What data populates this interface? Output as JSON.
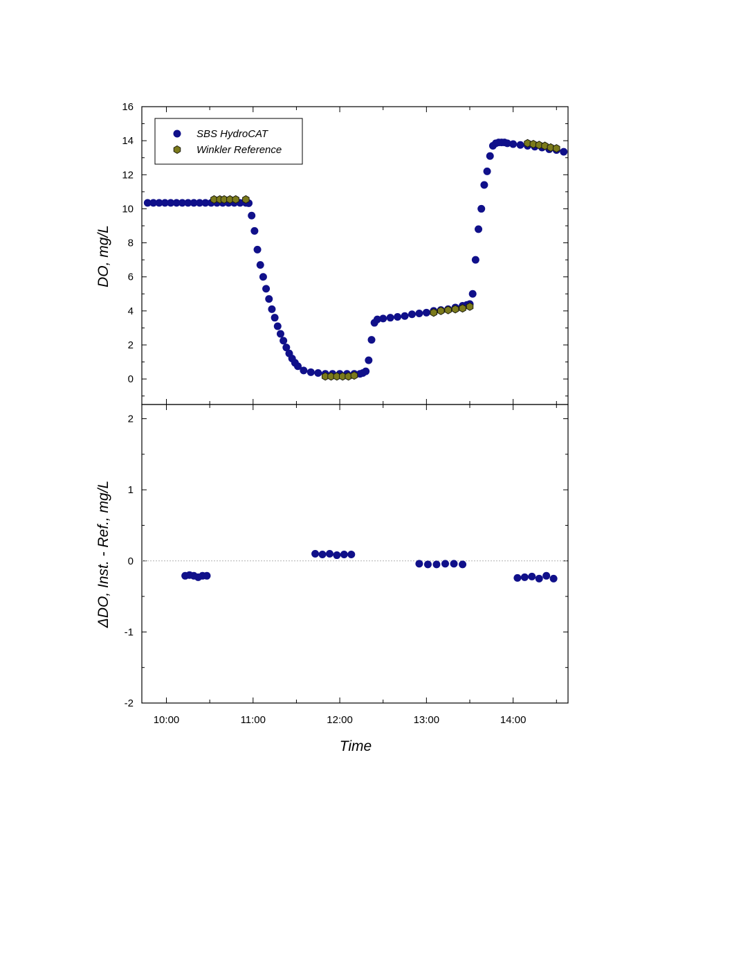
{
  "colors": {
    "instrument": "#10108a",
    "reference": "#7b7a1b",
    "reference_edge": "#1d1d10",
    "zero_line": "#b0b0b0",
    "axis": "#000000"
  },
  "chart_data": [
    {
      "type": "scatter",
      "panel": "top",
      "title": "",
      "xlabel": "",
      "ylabel": "DO, mg/L",
      "ylim": [
        -1.5,
        16
      ],
      "yticks": [
        0,
        2,
        4,
        6,
        8,
        10,
        12,
        14,
        16
      ],
      "xlim": [
        "09:43",
        "14:38"
      ],
      "grid": false,
      "legend": {
        "placement": "top-left",
        "entries": [
          "SBS HydroCAT",
          "Winkler Reference"
        ]
      },
      "series": [
        {
          "name": "SBS HydroCAT",
          "marker": "circle",
          "color": "#10108a",
          "x": [
            "09:47",
            "09:51",
            "09:55",
            "09:59",
            "10:03",
            "10:07",
            "10:11",
            "10:15",
            "10:19",
            "10:23",
            "10:27",
            "10:31",
            "10:35",
            "10:39",
            "10:43",
            "10:47",
            "10:51",
            "10:55",
            "10:57",
            "10:59",
            "11:01",
            "11:03",
            "11:05",
            "11:07",
            "11:09",
            "11:11",
            "11:13",
            "11:15",
            "11:17",
            "11:19",
            "11:21",
            "11:23",
            "11:25",
            "11:27",
            "11:29",
            "11:31",
            "11:35",
            "11:40",
            "11:45",
            "11:50",
            "11:55",
            "12:00",
            "12:05",
            "12:10",
            "12:14",
            "12:16",
            "12:18",
            "12:20",
            "12:22",
            "12:24",
            "12:26",
            "12:30",
            "12:35",
            "12:40",
            "12:45",
            "12:50",
            "12:55",
            "13:00",
            "13:05",
            "13:10",
            "13:15",
            "13:20",
            "13:25",
            "13:28",
            "13:30",
            "13:32",
            "13:34",
            "13:36",
            "13:38",
            "13:40",
            "13:42",
            "13:44",
            "13:46",
            "13:48",
            "13:50",
            "13:52",
            "13:54",
            "13:56",
            "14:00",
            "14:05",
            "14:10",
            "14:15",
            "14:20",
            "14:25",
            "14:30",
            "14:35"
          ],
          "y": [
            10.35,
            10.35,
            10.35,
            10.35,
            10.35,
            10.35,
            10.35,
            10.35,
            10.35,
            10.35,
            10.35,
            10.35,
            10.35,
            10.35,
            10.35,
            10.35,
            10.35,
            10.35,
            10.33,
            9.6,
            8.7,
            7.6,
            6.7,
            6.0,
            5.3,
            4.7,
            4.1,
            3.6,
            3.1,
            2.65,
            2.25,
            1.85,
            1.5,
            1.2,
            0.95,
            0.75,
            0.5,
            0.4,
            0.35,
            0.3,
            0.3,
            0.3,
            0.3,
            0.3,
            0.3,
            0.35,
            0.45,
            1.1,
            2.3,
            3.3,
            3.5,
            3.55,
            3.6,
            3.65,
            3.7,
            3.8,
            3.85,
            3.9,
            4.0,
            4.05,
            4.1,
            4.2,
            4.3,
            4.35,
            4.4,
            5.0,
            7.0,
            8.8,
            10.0,
            11.4,
            12.2,
            13.1,
            13.7,
            13.85,
            13.9,
            13.9,
            13.9,
            13.85,
            13.8,
            13.75,
            13.7,
            13.65,
            13.6,
            13.5,
            13.45,
            13.35
          ]
        },
        {
          "name": "Winkler Reference",
          "marker": "hexagon",
          "color": "#7b7a1b",
          "x": [
            "10:33",
            "10:37",
            "10:40",
            "10:44",
            "10:48",
            "10:55",
            "11:50",
            "11:54",
            "11:58",
            "12:02",
            "12:06",
            "12:10",
            "13:05",
            "13:10",
            "13:15",
            "13:20",
            "13:25",
            "13:30",
            "14:10",
            "14:14",
            "14:18",
            "14:22",
            "14:26",
            "14:30"
          ],
          "y": [
            10.55,
            10.55,
            10.55,
            10.55,
            10.55,
            10.55,
            0.15,
            0.15,
            0.15,
            0.15,
            0.15,
            0.2,
            3.9,
            4.0,
            4.05,
            4.1,
            4.15,
            4.25,
            13.85,
            13.8,
            13.75,
            13.7,
            13.6,
            13.55
          ]
        }
      ]
    },
    {
      "type": "scatter",
      "panel": "bottom",
      "title": "",
      "xlabel": "Time",
      "ylabel": "ΔDO, Inst. - Ref., mg/L",
      "ylim": [
        -2,
        2.2
      ],
      "yticks": [
        -2,
        -1,
        0,
        1,
        2
      ],
      "xlim": [
        "09:43",
        "14:38"
      ],
      "xticks": [
        "10:00",
        "11:00",
        "12:00",
        "13:00",
        "14:00"
      ],
      "zero_line": true,
      "grid": false,
      "series": [
        {
          "name": "SBS HydroCAT",
          "marker": "circle",
          "color": "#10108a",
          "x": [
            "10:13",
            "10:16",
            "10:19",
            "10:22",
            "10:25",
            "10:28",
            "11:43",
            "11:48",
            "11:53",
            "11:58",
            "12:03",
            "12:08",
            "12:55",
            "13:01",
            "13:07",
            "13:13",
            "13:19",
            "13:25",
            "14:03",
            "14:08",
            "14:13",
            "14:18",
            "14:23",
            "14:28"
          ],
          "y": [
            -0.21,
            -0.2,
            -0.21,
            -0.23,
            -0.21,
            -0.21,
            0.1,
            0.09,
            0.1,
            0.08,
            0.09,
            0.09,
            -0.04,
            -0.05,
            -0.05,
            -0.04,
            -0.04,
            -0.05,
            -0.24,
            -0.23,
            -0.22,
            -0.25,
            -0.21,
            -0.25
          ]
        }
      ]
    }
  ]
}
